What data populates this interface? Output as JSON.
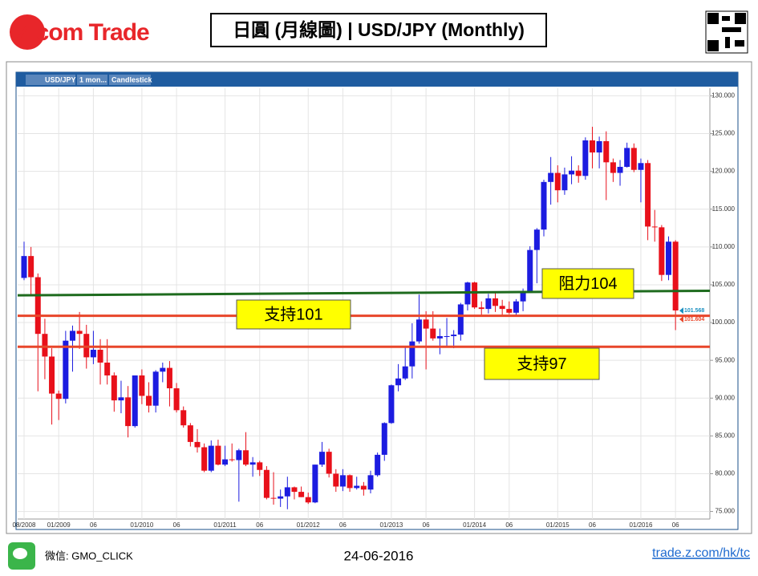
{
  "header": {
    "logo": "Z.com Trade",
    "title": "日圓 (月線圖) | USD/JPY  (Monthly)"
  },
  "toolbar": {
    "symbol": "USD/JPY",
    "interval": "1 mon...",
    "style": "Candlestick"
  },
  "footer": {
    "wechat": "微信: GMO_CLICK",
    "date": "24-06-2016",
    "url": "trade.z.com/hk/tc"
  },
  "chart_data": {
    "type": "candlestick",
    "categories": [
      "08/2008",
      null,
      null,
      null,
      null,
      "01/2009",
      null,
      null,
      null,
      null,
      "06",
      null,
      null,
      null,
      null,
      null,
      null,
      "01/2010",
      null,
      null,
      null,
      null,
      "06",
      null,
      null,
      null,
      null,
      null,
      null,
      "01/2011",
      null,
      null,
      null,
      null,
      "06",
      null,
      null,
      null,
      null,
      null,
      null,
      "01/2012",
      null,
      null,
      null,
      null,
      "06",
      null,
      null,
      null,
      null,
      null,
      null,
      "01/2013",
      null,
      null,
      null,
      null,
      "06",
      null,
      null,
      null,
      null,
      null,
      null,
      "01/2014",
      null,
      null,
      null,
      null,
      "06",
      null,
      null,
      null,
      null,
      null,
      null,
      "01/2015",
      null,
      null,
      null,
      null,
      "06",
      null,
      null,
      null,
      null,
      null,
      null,
      "01/2016",
      null,
      null,
      null,
      null,
      "06"
    ],
    "open": [
      105.9,
      108.8,
      106.0,
      98.5,
      95.5,
      90.6,
      89.9,
      97.6,
      98.9,
      98.5,
      95.4,
      96.4,
      94.7,
      93.0,
      89.7,
      90.1,
      86.3,
      93.0,
      90.3,
      89.0,
      93.5,
      94.0,
      91.3,
      88.4,
      86.4,
      84.2,
      83.5,
      80.4,
      83.7,
      81.2,
      81.9,
      81.8,
      83.1,
      81.2,
      81.5,
      80.5,
      76.8,
      76.7,
      77.0,
      78.2,
      77.6,
      76.9,
      76.2,
      81.2,
      82.9,
      80.0,
      78.3,
      79.8,
      78.1,
      78.4,
      77.9,
      79.8,
      82.5,
      86.7,
      91.7,
      92.6,
      94.2,
      97.5,
      100.4,
      99.2,
      97.9,
      98.2,
      98.2,
      98.4,
      102.4,
      105.3,
      102.0,
      101.8,
      103.2,
      102.2,
      101.8,
      101.3,
      102.8,
      104.1,
      109.6,
      112.3,
      118.6,
      119.8,
      117.5,
      119.6,
      120.1,
      119.4,
      124.1,
      122.5,
      124.0,
      121.2,
      119.8,
      120.6,
      123.1,
      120.2,
      121.1,
      112.7,
      112.6,
      106.3,
      110.7
    ],
    "high": [
      110.7,
      110.0,
      106.5,
      100.5,
      96.6,
      91.0,
      98.9,
      99.6,
      101.4,
      99.7,
      98.9,
      97.8,
      97.8,
      93.4,
      92.3,
      91.6,
      93.0,
      93.8,
      92.1,
      93.7,
      94.7,
      94.9,
      92.0,
      88.9,
      86.7,
      85.9,
      84.0,
      84.4,
      84.5,
      83.7,
      84.0,
      83.3,
      85.5,
      82.2,
      81.7,
      81.0,
      80.2,
      77.9,
      79.6,
      78.3,
      78.3,
      77.5,
      81.2,
      84.2,
      83.3,
      80.6,
      80.6,
      79.9,
      79.6,
      78.9,
      80.4,
      82.8,
      86.8,
      91.8,
      94.5,
      96.7,
      99.9,
      103.7,
      101.5,
      101.5,
      99.2,
      100.6,
      99.0,
      102.6,
      105.4,
      105.4,
      102.8,
      103.8,
      104.1,
      103.0,
      102.8,
      103.1,
      104.5,
      110.1,
      112.5,
      118.9,
      121.9,
      120.8,
      120.5,
      122.0,
      120.8,
      124.5,
      125.9,
      124.6,
      125.3,
      121.7,
      121.5,
      123.8,
      123.7,
      121.7,
      121.5,
      114.9,
      112.9,
      111.4,
      110.9
    ],
    "low": [
      105.6,
      103.5,
      90.9,
      92.5,
      86.5,
      87.1,
      89.3,
      93.5,
      96.5,
      93.9,
      94.5,
      91.8,
      91.8,
      88.2,
      88.0,
      84.8,
      86.1,
      89.2,
      88.1,
      88.1,
      92.1,
      88.9,
      88.1,
      86.1,
      83.6,
      82.8,
      80.2,
      80.2,
      81.1,
      81.0,
      81.6,
      76.3,
      81.0,
      79.6,
      79.7,
      76.6,
      75.9,
      75.6,
      75.3,
      76.6,
      76.9,
      76.0,
      76.1,
      80.9,
      79.5,
      77.6,
      77.7,
      77.6,
      77.9,
      77.1,
      77.4,
      79.6,
      81.7,
      86.6,
      90.9,
      92.4,
      92.6,
      97.2,
      93.8,
      97.6,
      95.8,
      96.9,
      96.6,
      97.6,
      101.6,
      101.8,
      100.8,
      101.2,
      101.4,
      100.8,
      101.1,
      100.8,
      101.5,
      104.0,
      105.2,
      111.4,
      115.6,
      115.9,
      116.9,
      118.3,
      118.5,
      118.9,
      120.4,
      120.4,
      116.2,
      118.6,
      118.1,
      120.5,
      119.9,
      115.9,
      110.9,
      110.7,
      105.5,
      105.6,
      99.0
    ],
    "close": [
      108.8,
      106.0,
      98.5,
      95.5,
      90.6,
      89.9,
      97.6,
      98.9,
      98.5,
      95.4,
      96.4,
      94.7,
      93.0,
      89.7,
      90.1,
      86.3,
      93.0,
      90.3,
      89.0,
      93.5,
      94.0,
      91.3,
      88.4,
      86.4,
      84.2,
      83.5,
      80.4,
      83.7,
      81.2,
      81.9,
      81.8,
      83.1,
      81.2,
      81.5,
      80.5,
      76.8,
      76.7,
      77.0,
      78.2,
      77.6,
      76.9,
      76.2,
      81.2,
      82.9,
      80.0,
      78.3,
      79.8,
      78.1,
      78.4,
      77.9,
      79.8,
      82.5,
      86.7,
      91.7,
      92.6,
      94.2,
      97.5,
      100.4,
      99.2,
      97.9,
      98.2,
      98.2,
      98.4,
      102.4,
      105.3,
      102.0,
      101.8,
      103.2,
      102.2,
      101.8,
      101.3,
      102.8,
      104.1,
      109.6,
      112.3,
      118.6,
      119.8,
      117.5,
      119.6,
      120.1,
      119.4,
      124.1,
      122.5,
      124.0,
      121.2,
      119.8,
      120.6,
      123.1,
      120.2,
      121.1,
      112.7,
      112.6,
      106.3,
      110.7,
      101.6
    ],
    "up_color": "#1c1ce0",
    "down_color": "#e8101a",
    "ylim": [
      74,
      131
    ],
    "yticks": [
      {
        "value": 75,
        "label": "75.000"
      },
      {
        "value": 80,
        "label": "80.000"
      },
      {
        "value": 85,
        "label": "85.000"
      },
      {
        "value": 90,
        "label": "90.000"
      },
      {
        "value": 95,
        "label": "95.000"
      },
      {
        "value": 100,
        "label": "100.000"
      },
      {
        "value": 105,
        "label": "105.000"
      },
      {
        "value": 110,
        "label": "110.000"
      },
      {
        "value": 115,
        "label": "115.000"
      },
      {
        "value": 120,
        "label": "120.000"
      },
      {
        "value": 125,
        "label": "125.000"
      },
      {
        "value": 130,
        "label": "130.000"
      }
    ],
    "grid": true,
    "resistance": {
      "label": "阻力104",
      "start": 103.6,
      "end": 104.2,
      "color": "#1e6b1e"
    },
    "supports": [
      {
        "label": "支持101",
        "value": 100.9,
        "color": "#e8462a"
      },
      {
        "label": "支持97",
        "value": 96.8,
        "color": "#e8462a"
      }
    ],
    "price_tags": [
      101.568,
      101.604
    ],
    "price_tag_colors": [
      "#1a8fc0",
      "#e8462a"
    ]
  }
}
